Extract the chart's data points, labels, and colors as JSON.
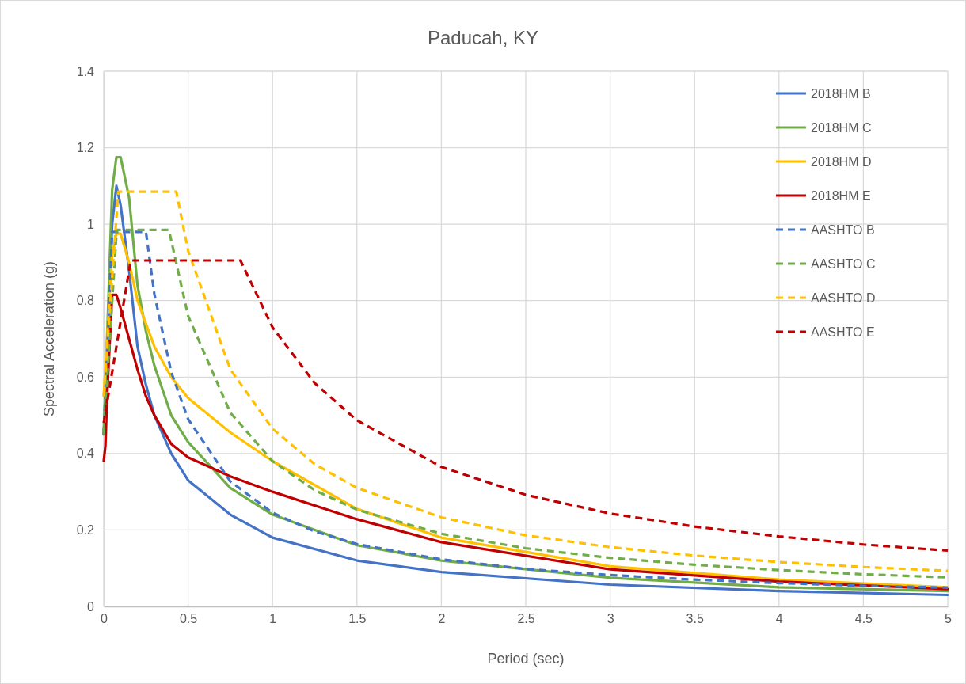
{
  "chart_data": {
    "type": "line",
    "title": "Paducah, KY",
    "xlabel": "Period (sec)",
    "ylabel": "Spectral Acceleration (g)",
    "xlim": [
      0,
      5
    ],
    "xticks": [
      {
        "value": 0,
        "label": "0"
      },
      {
        "value": 0.5,
        "label": "0.5"
      },
      {
        "value": 1,
        "label": "1"
      },
      {
        "value": 1.5,
        "label": "1.5"
      },
      {
        "value": 2,
        "label": "2"
      },
      {
        "value": 2.5,
        "label": "2.5"
      },
      {
        "value": 3,
        "label": "3"
      },
      {
        "value": 3.5,
        "label": "3.5"
      },
      {
        "value": 4,
        "label": "4"
      },
      {
        "value": 4.5,
        "label": "4.5"
      },
      {
        "value": 5,
        "label": "5"
      }
    ],
    "ylim": [
      0,
      1.4
    ],
    "yticks": [
      {
        "value": 0,
        "label": "0"
      },
      {
        "value": 0.2,
        "label": "0.2"
      },
      {
        "value": 0.4,
        "label": "0.4"
      },
      {
        "value": 0.6,
        "label": "0.6"
      },
      {
        "value": 0.8,
        "label": "0.8"
      },
      {
        "value": 1,
        "label": "1"
      },
      {
        "value": 1.2,
        "label": "1.2"
      },
      {
        "value": 1.4,
        "label": "1.4"
      }
    ],
    "grid": true,
    "legend": "top right",
    "marker": "none",
    "series": [
      {
        "name": "2018HM B",
        "color": "#4472c4",
        "line_style": "solid",
        "x": [
          0,
          0.05,
          0.075,
          0.1,
          0.15,
          0.2,
          0.25,
          0.3,
          0.4,
          0.5,
          0.75,
          1,
          1.5,
          2,
          3,
          4,
          5
        ],
        "values": [
          0.45,
          1.0,
          1.1,
          1.05,
          0.88,
          0.68,
          0.58,
          0.5,
          0.4,
          0.33,
          0.24,
          0.18,
          0.12,
          0.09,
          0.057,
          0.04,
          0.03
        ]
      },
      {
        "name": "2018HM C",
        "color": "#70ad47",
        "line_style": "solid",
        "x": [
          0,
          0.05,
          0.075,
          0.1,
          0.15,
          0.2,
          0.25,
          0.3,
          0.4,
          0.5,
          0.75,
          1,
          1.5,
          2,
          3,
          4,
          5
        ],
        "values": [
          0.45,
          1.09,
          1.175,
          1.175,
          1.07,
          0.84,
          0.72,
          0.63,
          0.5,
          0.43,
          0.31,
          0.24,
          0.16,
          0.12,
          0.075,
          0.05,
          0.04
        ]
      },
      {
        "name": "2018HM D",
        "color": "#ffc000",
        "line_style": "solid",
        "x": [
          0,
          0.05,
          0.075,
          0.1,
          0.15,
          0.2,
          0.3,
          0.4,
          0.5,
          0.75,
          1,
          1.5,
          2,
          3,
          4,
          5
        ],
        "values": [
          0.55,
          0.92,
          0.975,
          0.975,
          0.9,
          0.8,
          0.68,
          0.6,
          0.545,
          0.455,
          0.38,
          0.255,
          0.18,
          0.105,
          0.07,
          0.05
        ]
      },
      {
        "name": "2018HM E",
        "color": "#c00000",
        "line_style": "solid",
        "x": [
          0,
          0.01,
          0.02,
          0.05,
          0.075,
          0.1,
          0.15,
          0.2,
          0.25,
          0.3,
          0.4,
          0.5,
          0.75,
          1,
          1.5,
          2,
          3,
          4,
          5
        ],
        "values": [
          0.38,
          0.42,
          0.55,
          0.815,
          0.815,
          0.78,
          0.7,
          0.62,
          0.55,
          0.5,
          0.425,
          0.39,
          0.34,
          0.3,
          0.228,
          0.168,
          0.097,
          0.065,
          0.045
        ]
      },
      {
        "name": "AASHTO B",
        "color": "#4472c4",
        "line_style": "dashed",
        "x": [
          0,
          0.05,
          0.25,
          0.3,
          0.4,
          0.5,
          0.75,
          1,
          1.25,
          1.5,
          2,
          2.5,
          3,
          3.5,
          4,
          4.5,
          5
        ],
        "values": [
          0.45,
          0.98,
          0.98,
          0.817,
          0.613,
          0.49,
          0.327,
          0.245,
          0.196,
          0.163,
          0.123,
          0.098,
          0.082,
          0.07,
          0.061,
          0.054,
          0.049
        ]
      },
      {
        "name": "AASHTO C",
        "color": "#70ad47",
        "line_style": "dashed",
        "x": [
          0,
          0.077,
          0.386,
          0.5,
          0.75,
          1,
          1.25,
          1.5,
          2,
          2.5,
          3,
          3.5,
          4,
          4.5,
          5
        ],
        "values": [
          0.45,
          0.985,
          0.985,
          0.76,
          0.507,
          0.38,
          0.304,
          0.253,
          0.19,
          0.152,
          0.127,
          0.109,
          0.095,
          0.084,
          0.076
        ]
      },
      {
        "name": "AASHTO D",
        "color": "#ffc000",
        "line_style": "dashed",
        "x": [
          0,
          0.086,
          0.43,
          0.5,
          0.75,
          1,
          1.25,
          1.5,
          2,
          2.5,
          3,
          3.5,
          4,
          4.5,
          5
        ],
        "values": [
          0.55,
          1.085,
          1.085,
          0.93,
          0.62,
          0.465,
          0.372,
          0.31,
          0.233,
          0.186,
          0.155,
          0.133,
          0.116,
          0.103,
          0.093
        ]
      },
      {
        "name": "AASHTO E",
        "color": "#c00000",
        "line_style": "dashed",
        "x": [
          0,
          0.16,
          0.81,
          1,
          1.25,
          1.5,
          2,
          2.5,
          3,
          3.5,
          4,
          4.5,
          5
        ],
        "values": [
          0.48,
          0.905,
          0.905,
          0.73,
          0.584,
          0.487,
          0.365,
          0.292,
          0.243,
          0.209,
          0.183,
          0.162,
          0.146
        ]
      }
    ]
  }
}
